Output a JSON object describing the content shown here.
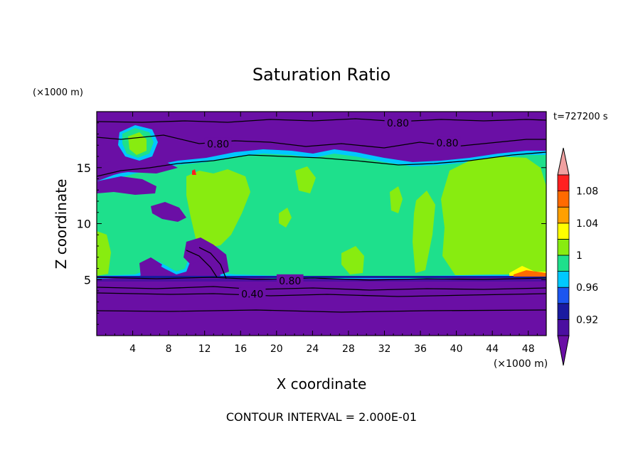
{
  "chart_data": {
    "type": "heatmap",
    "title": "Saturation Ratio",
    "time_label": "t=727200 s",
    "z_unit": "(×1000 m)",
    "x_unit": "(×1000 m)",
    "xlabel": "X coordinate",
    "ylabel": "Z coordinate",
    "footer": "CONTOUR INTERVAL = 2.000E-01",
    "xlim": [
      0,
      50
    ],
    "ylim": [
      0,
      20
    ],
    "x_ticks": [
      4,
      8,
      12,
      16,
      20,
      24,
      28,
      32,
      36,
      40,
      44,
      48
    ],
    "y_ticks": [
      5,
      10,
      15
    ],
    "contour_labels": [
      {
        "text": "0.80",
        "x": 33.5,
        "y": 19.0
      },
      {
        "text": "0.80",
        "x": 13.5,
        "y": 17.1
      },
      {
        "text": "0.80",
        "x": 39.0,
        "y": 17.2
      },
      {
        "text": "0.80",
        "x": 21.5,
        "y": 4.9
      },
      {
        "text": "0.40",
        "x": 17.3,
        "y": 3.7
      }
    ],
    "colorbar": {
      "levels": [
        0.9,
        0.92,
        0.94,
        0.96,
        0.98,
        1.0,
        1.02,
        1.04,
        1.06,
        1.08,
        1.1
      ],
      "labels": [
        "0.92",
        "0.96",
        "1",
        "1.04",
        "1.08"
      ],
      "colors": [
        "#4b0fa0",
        "#1a1aa0",
        "#1c55f0",
        "#00c8ff",
        "#1ee08c",
        "#88ec10",
        "#ffff00",
        "#ffa000",
        "#ff6a00",
        "#ff2020"
      ],
      "under_color": "#6a0fa5",
      "over_color": "#f0a0a0"
    },
    "colors": {
      "dry": "#6a0fa5",
      "cloud": "#1ee08c",
      "moist": "#88ec10",
      "edge": "#00c8ff",
      "blue": "#1c55f0",
      "navy": "#1a1aa0",
      "violet": "#4b0fa0"
    }
  }
}
